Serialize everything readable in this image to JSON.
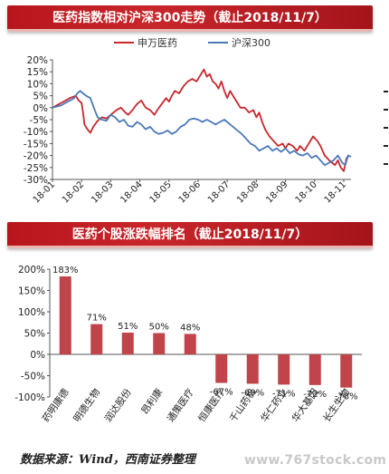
{
  "header": {
    "title1": "医药指数相对沪深300走势（截止2018/11/7）",
    "title2": "医药个股涨跌幅排名（截止2018/11/7）"
  },
  "footer": {
    "source": "数据来源：Wind，西南证券整理",
    "watermark": "www.767stock.com"
  },
  "colors": {
    "banner": "#b8161c",
    "series_sw": "#c8272d",
    "series_hs": "#4a79b8",
    "bar": "#c0444a"
  },
  "chart_data": [
    {
      "type": "line",
      "title": "医药指数相对沪深300走势（截止2018/11/7）",
      "xlabel": "",
      "ylabel": "",
      "ylim": [
        -30,
        20
      ],
      "yticks": [
        20,
        15,
        10,
        5,
        0,
        -5,
        -10,
        -15,
        -20,
        -25,
        -30
      ],
      "ytick_labels": [
        "20%",
        "15%",
        "10%",
        "5%",
        "0%",
        "-5%",
        "-10%",
        "-15%",
        "-20%",
        "-25%",
        "-30%"
      ],
      "x_tick_labels": [
        "18-01",
        "18-02",
        "18-03",
        "18-04",
        "18-05",
        "18-06",
        "18-07",
        "18-08",
        "18-09",
        "18-10",
        "18-11"
      ],
      "xlim": [
        0,
        10.25
      ],
      "grid": false,
      "legend": "top-center",
      "series": [
        {
          "name": "申万医药",
          "color": "#c8272d",
          "points": [
            [
              0,
              0
            ],
            [
              0.15,
              1
            ],
            [
              0.3,
              2
            ],
            [
              0.45,
              3
            ],
            [
              0.6,
              4
            ],
            [
              0.7,
              4.5
            ],
            [
              0.8,
              5
            ],
            [
              0.9,
              3
            ],
            [
              1.0,
              2
            ],
            [
              1.05,
              -2
            ],
            [
              1.1,
              -7
            ],
            [
              1.2,
              -9
            ],
            [
              1.3,
              -10.5
            ],
            [
              1.4,
              -8
            ],
            [
              1.55,
              -5.5
            ],
            [
              1.7,
              -4
            ],
            [
              1.85,
              -4.5
            ],
            [
              2.0,
              -3
            ],
            [
              2.2,
              -1
            ],
            [
              2.35,
              0
            ],
            [
              2.5,
              -2
            ],
            [
              2.6,
              -3
            ],
            [
              2.75,
              -1
            ],
            [
              2.9,
              1.5
            ],
            [
              3.05,
              3
            ],
            [
              3.2,
              0
            ],
            [
              3.35,
              -1
            ],
            [
              3.5,
              -3
            ],
            [
              3.6,
              -1
            ],
            [
              3.75,
              1.5
            ],
            [
              3.9,
              4
            ],
            [
              4.0,
              2.5
            ],
            [
              4.1,
              5
            ],
            [
              4.2,
              7
            ],
            [
              4.35,
              6
            ],
            [
              4.5,
              9
            ],
            [
              4.65,
              11
            ],
            [
              4.8,
              12
            ],
            [
              4.95,
              11
            ],
            [
              5.1,
              14
            ],
            [
              5.2,
              16
            ],
            [
              5.3,
              13
            ],
            [
              5.4,
              14
            ],
            [
              5.5,
              11
            ],
            [
              5.6,
              10
            ],
            [
              5.7,
              8
            ],
            [
              5.8,
              11
            ],
            [
              5.9,
              7
            ],
            [
              6.0,
              4
            ],
            [
              6.1,
              7
            ],
            [
              6.2,
              5
            ],
            [
              6.3,
              3
            ],
            [
              6.45,
              0
            ],
            [
              6.6,
              0
            ],
            [
              6.75,
              -2
            ],
            [
              6.9,
              -1
            ],
            [
              7.0,
              -4
            ],
            [
              7.1,
              -2
            ],
            [
              7.2,
              -6
            ],
            [
              7.3,
              -9
            ],
            [
              7.45,
              -12
            ],
            [
              7.6,
              -14
            ],
            [
              7.75,
              -16
            ],
            [
              7.9,
              -15
            ],
            [
              8.0,
              -17
            ],
            [
              8.1,
              -15
            ],
            [
              8.25,
              -16
            ],
            [
              8.4,
              -18
            ],
            [
              8.5,
              -16
            ],
            [
              8.65,
              -18
            ],
            [
              8.8,
              -15
            ],
            [
              8.95,
              -12
            ],
            [
              9.1,
              -14
            ],
            [
              9.2,
              -16
            ],
            [
              9.35,
              -20
            ],
            [
              9.5,
              -22
            ],
            [
              9.6,
              -23
            ],
            [
              9.7,
              -24
            ],
            [
              9.8,
              -22
            ],
            [
              9.9,
              -25
            ],
            [
              10.0,
              -26.5
            ],
            [
              10.1,
              -21
            ],
            [
              10.2,
              -20
            ]
          ]
        },
        {
          "name": "沪深300",
          "color": "#4a79b8",
          "points": [
            [
              0,
              0
            ],
            [
              0.15,
              0.5
            ],
            [
              0.3,
              1
            ],
            [
              0.45,
              2
            ],
            [
              0.6,
              3
            ],
            [
              0.75,
              4
            ],
            [
              0.85,
              6
            ],
            [
              0.95,
              7
            ],
            [
              1.05,
              6
            ],
            [
              1.15,
              5
            ],
            [
              1.3,
              4
            ],
            [
              1.45,
              -1
            ],
            [
              1.55,
              -4
            ],
            [
              1.7,
              -5
            ],
            [
              1.85,
              -5.5
            ],
            [
              2.0,
              -3
            ],
            [
              2.15,
              -4
            ],
            [
              2.3,
              -6
            ],
            [
              2.45,
              -5
            ],
            [
              2.6,
              -7.5
            ],
            [
              2.75,
              -8
            ],
            [
              2.9,
              -6
            ],
            [
              3.05,
              -7
            ],
            [
              3.2,
              -9
            ],
            [
              3.35,
              -8
            ],
            [
              3.5,
              -10
            ],
            [
              3.65,
              -11
            ],
            [
              3.8,
              -10.5
            ],
            [
              3.95,
              -9.5
            ],
            [
              4.1,
              -11
            ],
            [
              4.25,
              -10
            ],
            [
              4.4,
              -8
            ],
            [
              4.55,
              -7
            ],
            [
              4.7,
              -5
            ],
            [
              4.85,
              -4.5
            ],
            [
              5.0,
              -5
            ],
            [
              5.15,
              -6
            ],
            [
              5.3,
              -5
            ],
            [
              5.45,
              -6
            ],
            [
              5.6,
              -7
            ],
            [
              5.75,
              -6
            ],
            [
              5.9,
              -5
            ],
            [
              6.05,
              -6.5
            ],
            [
              6.2,
              -8
            ],
            [
              6.35,
              -9.5
            ],
            [
              6.5,
              -11
            ],
            [
              6.65,
              -13
            ],
            [
              6.8,
              -15
            ],
            [
              6.95,
              -16
            ],
            [
              7.1,
              -18
            ],
            [
              7.25,
              -17
            ],
            [
              7.4,
              -16
            ],
            [
              7.55,
              -18
            ],
            [
              7.7,
              -17
            ],
            [
              7.85,
              -18.5
            ],
            [
              8.0,
              -17
            ],
            [
              8.15,
              -19
            ],
            [
              8.3,
              -18
            ],
            [
              8.45,
              -19.5
            ],
            [
              8.6,
              -20
            ],
            [
              8.75,
              -19
            ],
            [
              8.9,
              -21
            ],
            [
              9.05,
              -20
            ],
            [
              9.2,
              -22
            ],
            [
              9.35,
              -24
            ],
            [
              9.5,
              -23
            ],
            [
              9.65,
              -22
            ],
            [
              9.8,
              -20
            ],
            [
              9.95,
              -23
            ],
            [
              10.05,
              -24
            ],
            [
              10.15,
              -20
            ],
            [
              10.25,
              -20.5
            ]
          ]
        }
      ]
    },
    {
      "type": "bar",
      "title": "医药个股涨跌幅排名（截止2018/11/7）",
      "xlabel": "",
      "ylabel": "",
      "ylim": [
        -100,
        200
      ],
      "yticks": [
        200,
        150,
        100,
        50,
        0,
        -50,
        -100
      ],
      "ytick_labels": [
        "200%",
        "150%",
        "100%",
        "50%",
        "0%",
        "-50%",
        "-100%"
      ],
      "grid": false,
      "categories": [
        "药明康德",
        "明德生物",
        "润达股份",
        "昂利康",
        "通策医疗",
        "恒康医疗",
        "千山药机",
        "华仁药业",
        "华大基因",
        "长生生物"
      ],
      "values": [
        183,
        71,
        51,
        50,
        48,
        -67,
        -69,
        -71,
        -72,
        -78
      ],
      "value_labels": [
        "183%",
        "71%",
        "51%",
        "50%",
        "48%",
        "-67%",
        "-69%",
        "-71%",
        "-72%",
        "-78%"
      ]
    }
  ]
}
